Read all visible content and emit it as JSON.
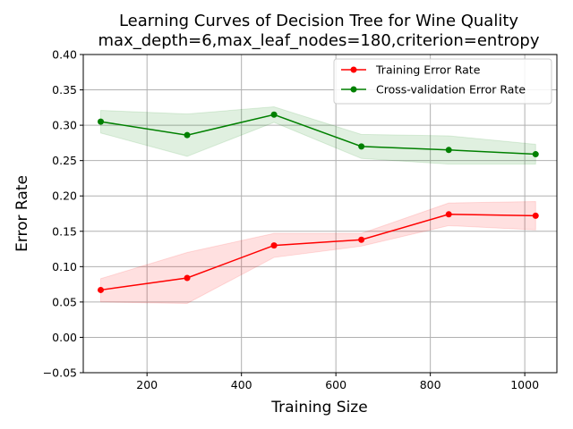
{
  "chart_data": {
    "type": "line",
    "title": "Learning Curves of Decision Tree for Wine Quality",
    "subtitle": "max_depth=6,max_leaf_nodes=180,criterion=entropy",
    "xlabel": "Training Size",
    "ylabel": "Error Rate",
    "xlim": [
      65,
      1068
    ],
    "ylim": [
      -0.05,
      0.4
    ],
    "xticks": [
      200,
      400,
      600,
      800,
      1000
    ],
    "xtick_labels": [
      "200",
      "400",
      "600",
      "800",
      "1000"
    ],
    "yticks": [
      -0.05,
      0.0,
      0.05,
      0.1,
      0.15,
      0.2,
      0.25,
      0.3,
      0.35,
      0.4
    ],
    "ytick_labels": [
      "−0.05",
      "0.00",
      "0.05",
      "0.10",
      "0.15",
      "0.20",
      "0.25",
      "0.30",
      "0.35",
      "0.40"
    ],
    "grid": true,
    "legend_position": "top-right",
    "x": [
      102,
      285,
      469,
      654,
      839,
      1023
    ],
    "series": [
      {
        "name": "Training Error Rate",
        "color": "#ff0000",
        "values": [
          0.067,
          0.084,
          0.13,
          0.138,
          0.174,
          0.172
        ],
        "lower": [
          0.05,
          0.048,
          0.113,
          0.129,
          0.158,
          0.152
        ],
        "upper": [
          0.083,
          0.12,
          0.147,
          0.147,
          0.19,
          0.192
        ]
      },
      {
        "name": "Cross-validation Error Rate",
        "color": "#008000",
        "values": [
          0.305,
          0.286,
          0.315,
          0.27,
          0.265,
          0.259
        ],
        "lower": [
          0.289,
          0.256,
          0.304,
          0.253,
          0.245,
          0.245
        ],
        "upper": [
          0.321,
          0.316,
          0.326,
          0.287,
          0.285,
          0.273
        ]
      }
    ]
  }
}
